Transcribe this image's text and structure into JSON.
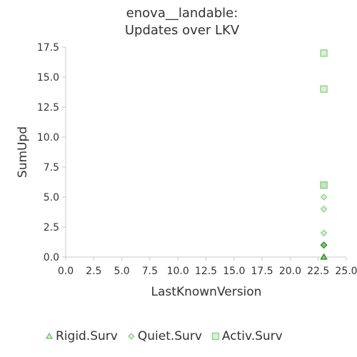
{
  "chart_data": {
    "type": "scatter",
    "title": [
      "enova__landable:",
      "Updates over LKV"
    ],
    "xlabel": "LastKnownVersion",
    "ylabel": "SumUpd",
    "xlim": [
      0,
      25
    ],
    "ylim": [
      0,
      17.5
    ],
    "x_ticks": [
      "0.0",
      "2.5",
      "5.0",
      "7.5",
      "10.0",
      "12.5",
      "15.0",
      "17.5",
      "20.0",
      "22.5",
      "25.0"
    ],
    "y_ticks": [
      "0.0",
      "2.5",
      "5.0",
      "7.5",
      "10.0",
      "12.5",
      "15.0",
      "17.5"
    ],
    "grid": false,
    "legend_position": "bottom",
    "series": [
      {
        "name": "Rigid.Surv",
        "marker": "triangle",
        "color": "#6abf69",
        "points": [
          {
            "x": 23,
            "y": 0
          },
          {
            "x": 23,
            "y": 0
          }
        ]
      },
      {
        "name": "Quiet.Surv",
        "marker": "diamond",
        "color": "#8fd48c",
        "points": [
          {
            "x": 23,
            "y": 5
          },
          {
            "x": 23,
            "y": 4
          },
          {
            "x": 23,
            "y": 2
          },
          {
            "x": 23,
            "y": 1
          },
          {
            "x": 23,
            "y": 1
          }
        ]
      },
      {
        "name": "Activ.Surv",
        "marker": "square",
        "color": "#8fd48c",
        "points": [
          {
            "x": 23,
            "y": 17
          },
          {
            "x": 23,
            "y": 14
          },
          {
            "x": 23,
            "y": 6
          },
          {
            "x": 23,
            "y": 6
          }
        ]
      }
    ]
  }
}
